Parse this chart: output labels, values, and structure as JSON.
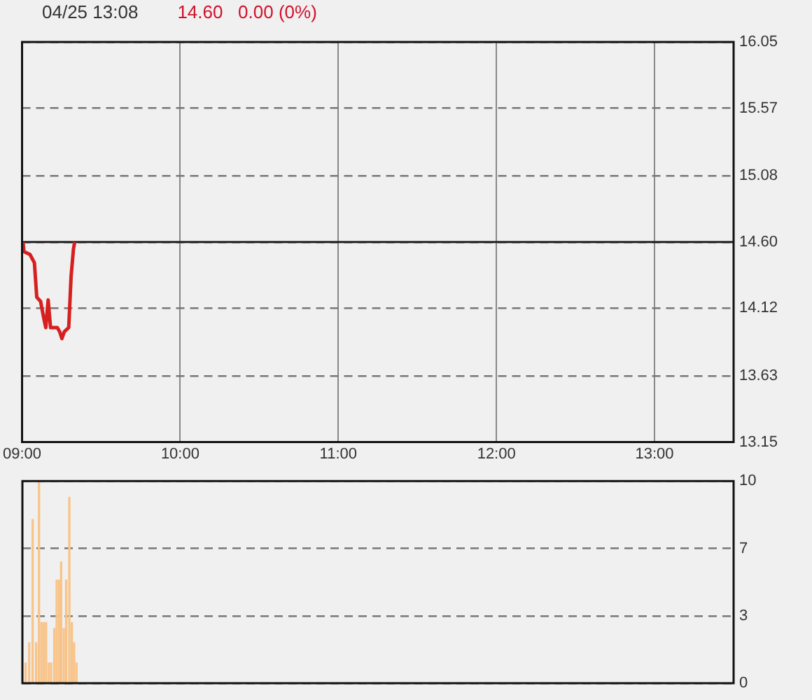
{
  "chart_data": [
    {
      "type": "line",
      "title": "04/25 13:08",
      "subtitle": "14.60   0.00 (0%)",
      "x": [
        9.006,
        9.012,
        9.05,
        9.078,
        9.093,
        9.117,
        9.137,
        9.15,
        9.165,
        9.18,
        9.223,
        9.238,
        9.252,
        9.267,
        9.295,
        9.31,
        9.325,
        9.333
      ],
      "series": [
        {
          "color": "#d62020",
          "values": [
            14.6,
            14.53,
            14.51,
            14.45,
            14.2,
            14.17,
            14.05,
            13.98,
            14.18,
            13.98,
            13.98,
            13.95,
            13.9,
            13.95,
            13.98,
            14.35,
            14.55,
            14.6
          ]
        }
      ],
      "xlim": [
        9,
        13.5
      ],
      "xticks": [
        {
          "value": 9,
          "label": "09:00"
        },
        {
          "value": 10,
          "label": "10:00"
        },
        {
          "value": 11,
          "label": "11:00"
        },
        {
          "value": 12,
          "label": "12:00"
        },
        {
          "value": 13,
          "label": "13:00"
        }
      ],
      "ylim": [
        13.15,
        16.05
      ],
      "yticks": [
        13.15,
        13.63,
        14.12,
        {
          "value": 14.6,
          "label": "14.60"
        },
        15.08,
        15.57,
        16.05
      ],
      "ref_lines": [
        {
          "axis": "y",
          "value": 14.6,
          "color": "#222222",
          "line_style": "solid"
        }
      ],
      "grid": true,
      "marker": "none",
      "line_style": "solid",
      "legend": false
    },
    {
      "type": "bar",
      "x": [
        9.02,
        9.043,
        9.065,
        9.087,
        9.105,
        9.12,
        9.135,
        9.15,
        9.167,
        9.182,
        9.202,
        9.217,
        9.232,
        9.245,
        9.262,
        9.277,
        9.297,
        9.313,
        9.327,
        9.342
      ],
      "series": [
        {
          "color": "#f8c48a",
          "values": [
            1,
            2,
            8.1,
            2,
            10,
            3,
            3,
            3,
            1,
            1,
            2.7,
            5.1,
            5.1,
            6,
            2.7,
            5.1,
            9.2,
            3,
            2,
            1
          ]
        }
      ],
      "xlim": [
        9,
        13.5
      ],
      "ylim": [
        0,
        10
      ],
      "yticks": [
        0,
        {
          "value": 3.333,
          "label": "3"
        },
        {
          "value": 6.667,
          "label": "7"
        },
        10
      ],
      "grid": "y",
      "tick_labels": "y",
      "legend": false
    }
  ]
}
